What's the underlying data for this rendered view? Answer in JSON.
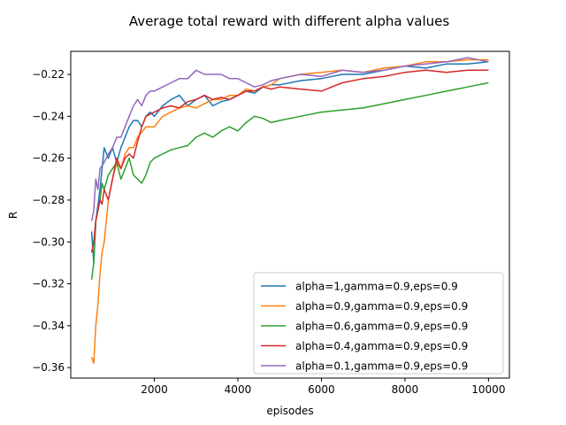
{
  "chart_data": {
    "type": "line",
    "title": "Average total reward with different alpha values",
    "xlabel": "episodes",
    "ylabel": "R",
    "xlim": [
      0,
      10500
    ],
    "ylim": [
      -0.365,
      -0.209
    ],
    "xticks": [
      2000,
      4000,
      6000,
      8000,
      10000
    ],
    "yticks": [
      -0.36,
      -0.34,
      -0.32,
      -0.3,
      -0.28,
      -0.26,
      -0.24,
      -0.22
    ],
    "grid": false,
    "legend_position": "lower-right",
    "series": [
      {
        "name": "alpha=1,gamma=0.9,eps=0.9",
        "color": "#1f77b4",
        "x": [
          500,
          550,
          600,
          700,
          800,
          900,
          1000,
          1100,
          1200,
          1300,
          1400,
          1500,
          1600,
          1700,
          1800,
          1900,
          2000,
          2200,
          2400,
          2600,
          2800,
          3000,
          3200,
          3400,
          3600,
          3800,
          4000,
          4200,
          4400,
          4600,
          4800,
          5000,
          5500,
          6000,
          6500,
          7000,
          7500,
          8000,
          8500,
          9000,
          9500,
          10000
        ],
        "y": [
          -0.295,
          -0.31,
          -0.29,
          -0.275,
          -0.255,
          -0.26,
          -0.255,
          -0.262,
          -0.255,
          -0.25,
          -0.245,
          -0.242,
          -0.242,
          -0.245,
          -0.24,
          -0.238,
          -0.24,
          -0.235,
          -0.232,
          -0.23,
          -0.235,
          -0.232,
          -0.23,
          -0.235,
          -0.233,
          -0.232,
          -0.23,
          -0.228,
          -0.229,
          -0.226,
          -0.225,
          -0.225,
          -0.223,
          -0.222,
          -0.22,
          -0.22,
          -0.218,
          -0.216,
          -0.217,
          -0.215,
          -0.215,
          -0.214
        ]
      },
      {
        "name": "alpha=0.9,gamma=0.9,eps=0.9",
        "color": "#ff7f0e",
        "x": [
          500,
          550,
          600,
          650,
          700,
          750,
          800,
          900,
          1000,
          1100,
          1200,
          1300,
          1400,
          1500,
          1600,
          1800,
          2000,
          2200,
          2400,
          2600,
          2800,
          3000,
          3200,
          3400,
          3600,
          3800,
          4000,
          4200,
          4400,
          4600,
          4800,
          5000,
          5500,
          6000,
          6500,
          7000,
          7500,
          8000,
          8500,
          9000,
          9500,
          10000
        ],
        "y": [
          -0.355,
          -0.358,
          -0.34,
          -0.33,
          -0.315,
          -0.305,
          -0.3,
          -0.28,
          -0.27,
          -0.262,
          -0.265,
          -0.258,
          -0.255,
          -0.255,
          -0.25,
          -0.245,
          -0.245,
          -0.24,
          -0.238,
          -0.236,
          -0.235,
          -0.236,
          -0.234,
          -0.232,
          -0.232,
          -0.23,
          -0.23,
          -0.227,
          -0.228,
          -0.226,
          -0.225,
          -0.222,
          -0.22,
          -0.219,
          -0.218,
          -0.219,
          -0.217,
          -0.216,
          -0.214,
          -0.214,
          -0.213,
          -0.213
        ]
      },
      {
        "name": "alpha=0.6,gamma=0.9,eps=0.9",
        "color": "#2ca02c",
        "x": [
          500,
          550,
          600,
          650,
          700,
          750,
          800,
          900,
          1000,
          1100,
          1200,
          1300,
          1400,
          1500,
          1600,
          1700,
          1800,
          1900,
          2000,
          2200,
          2400,
          2600,
          2800,
          3000,
          3200,
          3400,
          3600,
          3800,
          4000,
          4200,
          4400,
          4600,
          4800,
          5000,
          5500,
          6000,
          6500,
          7000,
          7500,
          8000,
          8500,
          9000,
          9500,
          10000
        ],
        "y": [
          -0.318,
          -0.31,
          -0.29,
          -0.285,
          -0.28,
          -0.272,
          -0.275,
          -0.268,
          -0.265,
          -0.262,
          -0.27,
          -0.265,
          -0.26,
          -0.268,
          -0.27,
          -0.272,
          -0.268,
          -0.262,
          -0.26,
          -0.258,
          -0.256,
          -0.255,
          -0.254,
          -0.25,
          -0.248,
          -0.25,
          -0.247,
          -0.245,
          -0.247,
          -0.243,
          -0.24,
          -0.241,
          -0.243,
          -0.242,
          -0.24,
          -0.238,
          -0.237,
          -0.236,
          -0.234,
          -0.232,
          -0.23,
          -0.228,
          -0.226,
          -0.224
        ]
      },
      {
        "name": "alpha=0.4,gamma=0.9,eps=0.9",
        "color": "#d62728",
        "x": [
          500,
          550,
          600,
          650,
          700,
          750,
          800,
          900,
          1000,
          1100,
          1200,
          1300,
          1400,
          1500,
          1600,
          1700,
          1800,
          2000,
          2200,
          2400,
          2600,
          2800,
          3000,
          3200,
          3400,
          3600,
          3800,
          4000,
          4200,
          4400,
          4600,
          4800,
          5000,
          5500,
          6000,
          6500,
          7000,
          7500,
          8000,
          8500,
          9000,
          9500,
          10000
        ],
        "y": [
          -0.305,
          -0.3,
          -0.29,
          -0.285,
          -0.28,
          -0.282,
          -0.275,
          -0.28,
          -0.27,
          -0.26,
          -0.265,
          -0.26,
          -0.258,
          -0.26,
          -0.252,
          -0.245,
          -0.24,
          -0.238,
          -0.236,
          -0.235,
          -0.236,
          -0.233,
          -0.232,
          -0.23,
          -0.232,
          -0.231,
          -0.232,
          -0.23,
          -0.228,
          -0.228,
          -0.226,
          -0.227,
          -0.226,
          -0.227,
          -0.228,
          -0.224,
          -0.222,
          -0.221,
          -0.219,
          -0.218,
          -0.219,
          -0.218,
          -0.218
        ]
      },
      {
        "name": "alpha=0.1,gamma=0.9,eps=0.9",
        "color": "#9467bd",
        "x": [
          500,
          550,
          600,
          650,
          700,
          800,
          900,
          1000,
          1100,
          1200,
          1300,
          1400,
          1500,
          1600,
          1700,
          1800,
          1900,
          2000,
          2200,
          2400,
          2600,
          2800,
          3000,
          3200,
          3400,
          3600,
          3800,
          4000,
          4200,
          4400,
          4600,
          4800,
          5000,
          5500,
          6000,
          6500,
          7000,
          7500,
          8000,
          8500,
          9000,
          9500,
          10000
        ],
        "y": [
          -0.29,
          -0.285,
          -0.27,
          -0.275,
          -0.265,
          -0.262,
          -0.258,
          -0.255,
          -0.25,
          -0.25,
          -0.245,
          -0.24,
          -0.235,
          -0.232,
          -0.235,
          -0.23,
          -0.228,
          -0.228,
          -0.226,
          -0.224,
          -0.222,
          -0.222,
          -0.218,
          -0.22,
          -0.22,
          -0.22,
          -0.222,
          -0.222,
          -0.224,
          -0.226,
          -0.225,
          -0.223,
          -0.222,
          -0.22,
          -0.221,
          -0.218,
          -0.219,
          -0.218,
          -0.216,
          -0.215,
          -0.214,
          -0.212,
          -0.214
        ]
      }
    ]
  }
}
